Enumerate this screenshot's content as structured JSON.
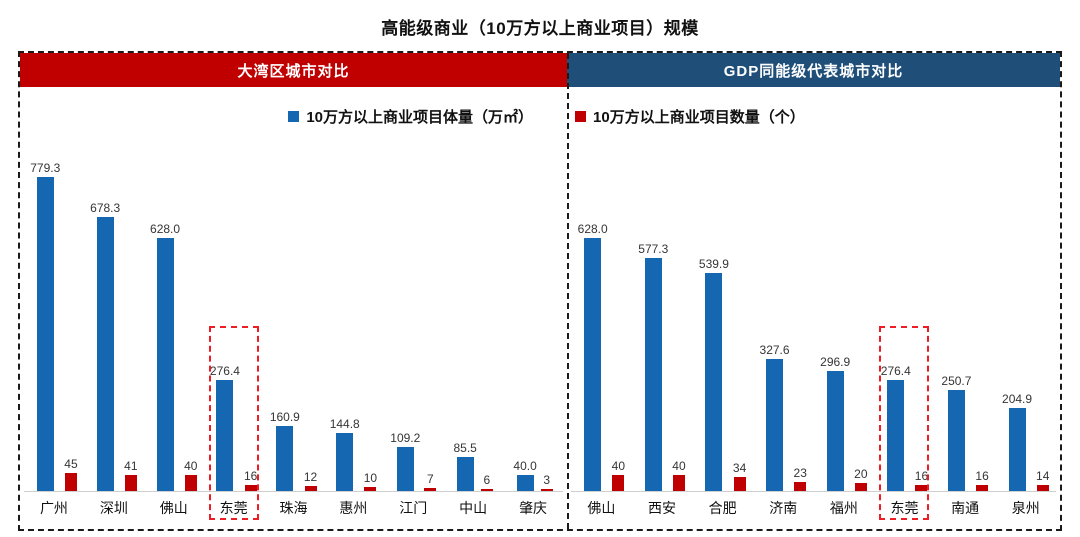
{
  "page": {
    "title": "高能级商业（10万方以上商业项目）规模"
  },
  "panels": {
    "left_header": "大湾区城市对比",
    "right_header": "GDP同能级代表城市对比"
  },
  "legend": [
    {
      "label": "10万方以上商业项目体量（万㎡）",
      "color": "#1667B1"
    },
    {
      "label": "10万方以上商业项目数量（个）",
      "color": "#C00000"
    }
  ],
  "colors": {
    "bar_blue": "#1667B1",
    "bar_red": "#C00000",
    "header_red": "#C00000",
    "header_blue": "#1F4E79",
    "highlight": "#EE1D23",
    "border": "#1a1a1a"
  },
  "chart_data": [
    {
      "type": "bar",
      "title": "大湾区城市对比",
      "categories": [
        "广州",
        "深圳",
        "佛山",
        "东莞",
        "珠海",
        "惠州",
        "江门",
        "中山",
        "肇庆"
      ],
      "series": [
        {
          "name": "10万方以上商业项目体量（万㎡）",
          "color": "#1667B1",
          "values": [
            779.3,
            678.3,
            628.0,
            276.4,
            160.9,
            144.8,
            109.2,
            85.5,
            40.0
          ]
        },
        {
          "name": "10万方以上商业项目数量（个）",
          "color": "#C00000",
          "values": [
            45,
            41,
            40,
            16,
            12,
            10,
            7,
            6,
            3
          ]
        }
      ],
      "highlight_category": "东莞",
      "ylim": [
        0,
        800
      ],
      "grid": false,
      "axis_visible": false,
      "legend_position": "top",
      "data_labels": true
    },
    {
      "type": "bar",
      "title": "GDP同能级代表城市对比",
      "categories": [
        "佛山",
        "西安",
        "合肥",
        "济南",
        "福州",
        "东莞",
        "南通",
        "泉州"
      ],
      "series": [
        {
          "name": "10万方以上商业项目体量（万㎡）",
          "color": "#1667B1",
          "values": [
            628.0,
            577.3,
            539.9,
            327.6,
            296.9,
            276.4,
            250.7,
            204.9
          ]
        },
        {
          "name": "10万方以上商业项目数量（个）",
          "color": "#C00000",
          "values": [
            40,
            40,
            34,
            23,
            20,
            16,
            16,
            14
          ]
        }
      ],
      "highlight_category": "东莞",
      "ylim": [
        0,
        800
      ],
      "grid": false,
      "axis_visible": false,
      "legend_position": "top",
      "data_labels": true
    }
  ]
}
